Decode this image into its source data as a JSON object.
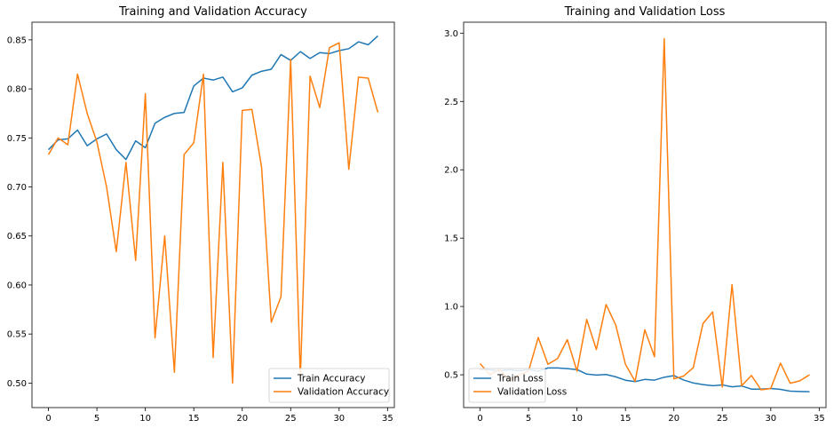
{
  "chart_data": [
    {
      "type": "line",
      "title": "Training and Validation Accuracy",
      "xlabel": "",
      "ylabel": "",
      "xlim": [
        -1.7,
        35.7
      ],
      "ylim": [
        0.475,
        0.868
      ],
      "xticks": [
        0,
        5,
        10,
        15,
        20,
        25,
        30,
        35
      ],
      "yticks": [
        0.5,
        0.55,
        0.6,
        0.65,
        0.7,
        0.75,
        0.8,
        0.85
      ],
      "ytick_format": 2,
      "grid": false,
      "legend_position": "lower right",
      "x": [
        0,
        1,
        2,
        3,
        4,
        5,
        6,
        7,
        8,
        9,
        10,
        11,
        12,
        13,
        14,
        15,
        16,
        17,
        18,
        19,
        20,
        21,
        22,
        23,
        24,
        25,
        26,
        27,
        28,
        29,
        30,
        31,
        32,
        33,
        34
      ],
      "series": [
        {
          "name": "Train Accuracy",
          "color": "#1f77b4",
          "values": [
            0.738,
            0.748,
            0.749,
            0.758,
            0.742,
            0.749,
            0.754,
            0.738,
            0.728,
            0.747,
            0.74,
            0.765,
            0.771,
            0.775,
            0.776,
            0.803,
            0.811,
            0.809,
            0.812,
            0.797,
            0.801,
            0.814,
            0.818,
            0.82,
            0.835,
            0.829,
            0.838,
            0.831,
            0.837,
            0.836,
            0.839,
            0.841,
            0.848,
            0.845,
            0.854
          ]
        },
        {
          "name": "Validation Accuracy",
          "color": "#ff7f0e",
          "values": [
            0.733,
            0.75,
            0.743,
            0.815,
            0.775,
            0.746,
            0.7,
            0.634,
            0.725,
            0.625,
            0.795,
            0.546,
            0.65,
            0.511,
            0.733,
            0.745,
            0.815,
            0.526,
            0.725,
            0.5,
            0.778,
            0.779,
            0.72,
            0.562,
            0.588,
            0.83,
            0.505,
            0.813,
            0.781,
            0.842,
            0.847,
            0.718,
            0.812,
            0.811,
            0.776
          ]
        }
      ]
    },
    {
      "type": "line",
      "title": "Training and Validation Loss",
      "xlabel": "",
      "ylabel": "",
      "xlim": [
        -1.7,
        35.7
      ],
      "ylim": [
        0.26,
        3.08
      ],
      "xticks": [
        0,
        5,
        10,
        15,
        20,
        25,
        30,
        35
      ],
      "yticks": [
        0.5,
        1.0,
        1.5,
        2.0,
        2.5,
        3.0
      ],
      "ytick_format": 1,
      "grid": false,
      "legend_position": "lower left",
      "x": [
        0,
        1,
        2,
        3,
        4,
        5,
        6,
        7,
        8,
        9,
        10,
        11,
        12,
        13,
        14,
        15,
        16,
        17,
        18,
        19,
        20,
        21,
        22,
        23,
        24,
        25,
        26,
        27,
        28,
        29,
        30,
        31,
        32,
        33,
        34
      ],
      "series": [
        {
          "name": "Train Loss",
          "color": "#1f77b4",
          "values": [
            0.54,
            0.537,
            0.528,
            0.537,
            0.53,
            0.538,
            0.526,
            0.55,
            0.55,
            0.545,
            0.538,
            0.505,
            0.498,
            0.502,
            0.485,
            0.46,
            0.45,
            0.466,
            0.461,
            0.482,
            0.494,
            0.462,
            0.44,
            0.428,
            0.42,
            0.426,
            0.412,
            0.418,
            0.395,
            0.395,
            0.4,
            0.393,
            0.38,
            0.378,
            0.376
          ]
        },
        {
          "name": "Validation Loss",
          "color": "#ff7f0e",
          "values": [
            0.582,
            0.5,
            0.54,
            0.46,
            0.499,
            0.527,
            0.773,
            0.577,
            0.619,
            0.757,
            0.527,
            0.905,
            0.685,
            1.014,
            0.864,
            0.577,
            0.452,
            0.829,
            0.632,
            2.96,
            0.47,
            0.49,
            0.552,
            0.874,
            0.96,
            0.41,
            1.16,
            0.42,
            0.495,
            0.39,
            0.4,
            0.585,
            0.438,
            0.456,
            0.5
          ]
        }
      ]
    }
  ]
}
